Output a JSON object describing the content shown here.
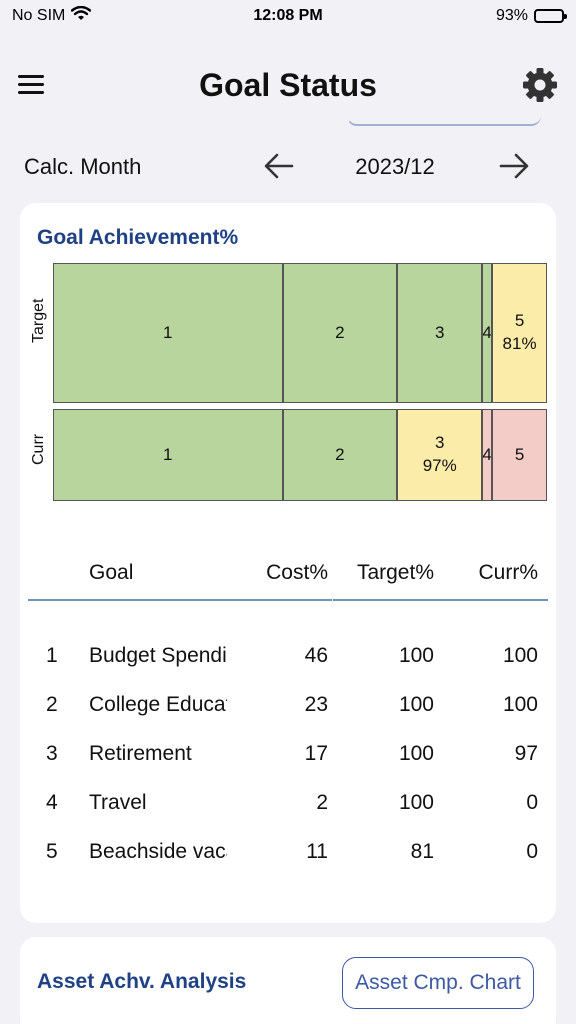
{
  "status": {
    "carrier": "No SIM",
    "time": "12:08 PM",
    "battery": "93%",
    "battery_level": 0.93
  },
  "nav": {
    "title": "Goal Status"
  },
  "month": {
    "label": "Calc. Month",
    "value": "2023/12"
  },
  "achievement": {
    "title": "Goal Achievement%",
    "rows": [
      {
        "label": "Target",
        "segments": [
          {
            "text": "1",
            "pct": "",
            "cost": 46,
            "status": "green"
          },
          {
            "text": "2",
            "pct": "",
            "cost": 23,
            "status": "green"
          },
          {
            "text": "3",
            "pct": "",
            "cost": 17,
            "status": "green"
          },
          {
            "text": "4",
            "pct": "",
            "cost": 2,
            "status": "green"
          },
          {
            "text": "5",
            "pct": "81%",
            "cost": 11,
            "status": "yellow"
          }
        ]
      },
      {
        "label": "Curr",
        "segments": [
          {
            "text": "1",
            "pct": "",
            "cost": 46,
            "status": "green"
          },
          {
            "text": "2",
            "pct": "",
            "cost": 23,
            "status": "green"
          },
          {
            "text": "3",
            "pct": "97%",
            "cost": 17,
            "status": "yellow"
          },
          {
            "text": "4",
            "pct": "",
            "cost": 2,
            "status": "red"
          },
          {
            "text": "5",
            "pct": "",
            "cost": 11,
            "status": "red"
          }
        ]
      }
    ]
  },
  "table": {
    "headers": {
      "goal": "Goal",
      "cost": "Cost%",
      "target": "Target%",
      "curr": "Curr%"
    },
    "rows": [
      {
        "num": "1",
        "goal": "Budget Spending",
        "cost": "46",
        "target": "100",
        "curr": "100"
      },
      {
        "num": "2",
        "goal": "College Education",
        "cost": "23",
        "target": "100",
        "curr": "100"
      },
      {
        "num": "3",
        "goal": "Retirement",
        "cost": "17",
        "target": "100",
        "curr": "97"
      },
      {
        "num": "4",
        "goal": "Travel",
        "cost": "2",
        "target": "100",
        "curr": "0"
      },
      {
        "num": "5",
        "goal": "Beachside vacation",
        "cost": "11",
        "target": "81",
        "curr": "0"
      }
    ]
  },
  "asset": {
    "title": "Asset Achv. Analysis",
    "button": "Asset Cmp. Chart"
  },
  "colors": {
    "green": "#b7d59d",
    "yellow": "#fcecaa",
    "red": "#f4ccc7",
    "accent": "#1e4285"
  }
}
